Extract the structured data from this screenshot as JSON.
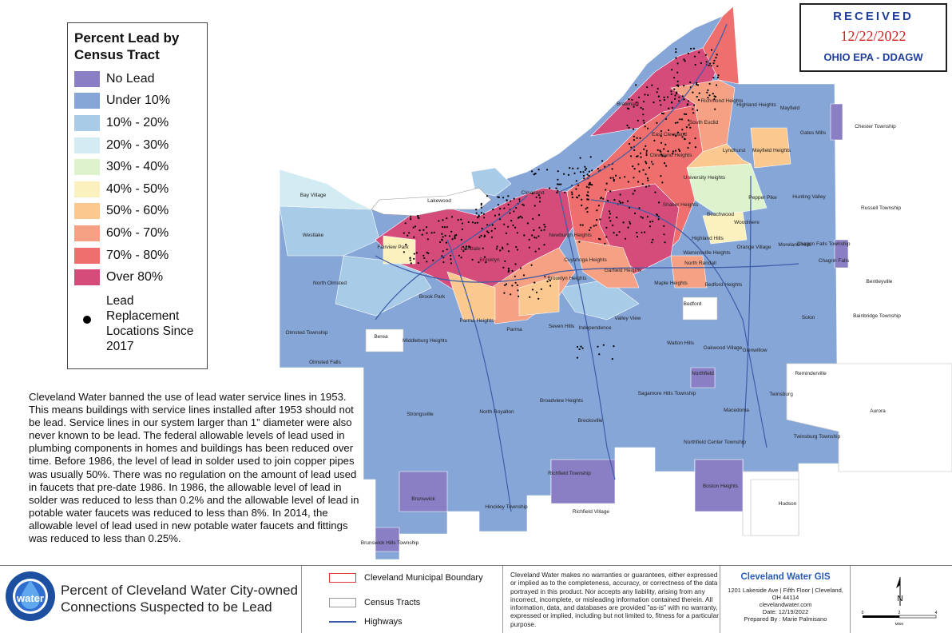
{
  "legend": {
    "title": "Percent Lead by Census Tract",
    "items": [
      {
        "label": "No Lead",
        "color": "#8a7fc4"
      },
      {
        "label": "Under 10%",
        "color": "#86a6d8"
      },
      {
        "label": "10% - 20%",
        "color": "#a8cbe8"
      },
      {
        "label": "20% - 30%",
        "color": "#d3ebf3"
      },
      {
        "label": "30% - 40%",
        "color": "#dcf3cd"
      },
      {
        "label": "40% - 50%",
        "color": "#fbf1be"
      },
      {
        "label": "50% - 60%",
        "color": "#fbc88f"
      },
      {
        "label": "60% - 70%",
        "color": "#f6a184"
      },
      {
        "label": "70% - 80%",
        "color": "#ee6f6d"
      },
      {
        "label": "Over 80%",
        "color": "#d54c7b"
      }
    ],
    "lead_label": "Lead Replacement Locations Since 2017"
  },
  "stamp": {
    "received": "RECEIVED",
    "date": "12/22/2022",
    "agency": "OHIO EPA - DDAGW"
  },
  "description": "Cleveland Water banned the use of lead water service lines in 1953. This means buildings with service lines installed after 1953 should not be lead. Service lines in our system larger than 1” diameter were also never known to be lead. The federal allowable levels of lead used in plumbing components in homes and buildings has been reduced over time. Before 1986, the level of lead in solder used to join copper pipes was usually 50%. There was no regulation on the amount of lead used in faucets that pre-date 1986. In 1986, the allowable level of lead in solder was reduced to less than 0.2% and the allowable level of lead in potable water faucets was reduced to less than 8%. In 2014, the allowable level of lead used in new potable water faucets and fittings was reduced to less than 0.25%.",
  "places": [
    {
      "name": "Bay Village",
      "pos": "bay"
    },
    {
      "name": "Lakewood",
      "pos": "lakewood"
    },
    {
      "name": "Cleveland",
      "pos": "cleveland"
    },
    {
      "name": "Westlake",
      "pos": "westlake"
    },
    {
      "name": "Fairview Park",
      "pos": "fairview"
    },
    {
      "name": "Linndale",
      "pos": "linndale"
    },
    {
      "name": "Brooklyn",
      "pos": "brooklyn"
    },
    {
      "name": "Newburgh Heights",
      "pos": "newburgh"
    },
    {
      "name": "Cuyahoga Heights",
      "pos": "cuyahoga"
    },
    {
      "name": "Brooklyn Heights",
      "pos": "brooklynh"
    },
    {
      "name": "Garfield Heights",
      "pos": "garfield"
    },
    {
      "name": "Maple Heights",
      "pos": "maple"
    },
    {
      "name": "Bratenahl",
      "pos": "bratenahl"
    },
    {
      "name": "Richmond Heights",
      "pos": "richmond"
    },
    {
      "name": "Highland Heights",
      "pos": "highland"
    },
    {
      "name": "Mayfield",
      "pos": "mayfield"
    },
    {
      "name": "Gates Mills",
      "pos": "gates"
    },
    {
      "name": "Chester Township",
      "pos": "chester"
    },
    {
      "name": "South Euclid",
      "pos": "southeuclid"
    },
    {
      "name": "East Cleveland",
      "pos": "eastcle"
    },
    {
      "name": "Cleveland Heights",
      "pos": "clehts"
    },
    {
      "name": "Lyndhurst",
      "pos": "lyndhurst"
    },
    {
      "name": "Mayfield Heights",
      "pos": "mayfieldh"
    },
    {
      "name": "University Heights",
      "pos": "univ"
    },
    {
      "name": "Shaker Heights",
      "pos": "shaker"
    },
    {
      "name": "Beachwood",
      "pos": "beachwood"
    },
    {
      "name": "Pepper Pike",
      "pos": "pepper"
    },
    {
      "name": "Hunting Valley",
      "pos": "hunting"
    },
    {
      "name": "Russell Township",
      "pos": "russell"
    },
    {
      "name": "Woodmere",
      "pos": "woodmere"
    },
    {
      "name": "Highland Hills",
      "pos": "highlandhills"
    },
    {
      "name": "Warrensville Heights",
      "pos": "warrensville"
    },
    {
      "name": "North Randall",
      "pos": "northrandall"
    },
    {
      "name": "Orange Village",
      "pos": "orange"
    },
    {
      "name": "Moreland Hills",
      "pos": "moreland"
    },
    {
      "name": "Chagrin Falls Township",
      "pos": "chagrintwp"
    },
    {
      "name": "Chagrin Falls",
      "pos": "chagrin"
    },
    {
      "name": "Bentleyville",
      "pos": "bentley"
    },
    {
      "name": "Bedford Heights",
      "pos": "bedfordh"
    },
    {
      "name": "Bedford",
      "pos": "bedford"
    },
    {
      "name": "Solon",
      "pos": "solon"
    },
    {
      "name": "Bainbridge Township",
      "pos": "bainbridge"
    },
    {
      "name": "North Olmsted",
      "pos": "northolmsted"
    },
    {
      "name": "Brook Park",
      "pos": "brookpark"
    },
    {
      "name": "Parma Heights",
      "pos": "parmah"
    },
    {
      "name": "Parma",
      "pos": "parma"
    },
    {
      "name": "Seven Hills",
      "pos": "seven"
    },
    {
      "name": "Independence",
      "pos": "independence"
    },
    {
      "name": "Valley View",
      "pos": "valleyview"
    },
    {
      "name": "Walton Hills",
      "pos": "walton"
    },
    {
      "name": "Oakwood Village",
      "pos": "oakwood"
    },
    {
      "name": "Glenwillow",
      "pos": "glenwillow"
    },
    {
      "name": "Olmsted Township",
      "pos": "olmstedtwp"
    },
    {
      "name": "Berea",
      "pos": "berea"
    },
    {
      "name": "Middleburg Heights",
      "pos": "middleburg"
    },
    {
      "name": "Olmsted Falls",
      "pos": "olmstedfalls"
    },
    {
      "name": "Northfield",
      "pos": "northfield"
    },
    {
      "name": "Reminderville",
      "pos": "reminder"
    },
    {
      "name": "Sagamore Hills Township",
      "pos": "sagamore"
    },
    {
      "name": "Twinsburg",
      "pos": "twinsburg"
    },
    {
      "name": "Macedonia",
      "pos": "macedonia"
    },
    {
      "name": "Aurora",
      "pos": "aurora"
    },
    {
      "name": "Strongsville",
      "pos": "strongsville"
    },
    {
      "name": "North Royalton",
      "pos": "royalton"
    },
    {
      "name": "Broadview Heights",
      "pos": "broadview"
    },
    {
      "name": "Brecksville",
      "pos": "brecksville"
    },
    {
      "name": "Northfield Center Township",
      "pos": "northfieldctr"
    },
    {
      "name": "Twinsburg Township",
      "pos": "twinsburgtwp"
    },
    {
      "name": "Richfield Township",
      "pos": "richfieldtwp"
    },
    {
      "name": "Richfield Village",
      "pos": "richfieldvil"
    },
    {
      "name": "Boston Heights",
      "pos": "boston"
    },
    {
      "name": "Hudson",
      "pos": "hudson"
    },
    {
      "name": "Brunswick",
      "pos": "brunswick"
    },
    {
      "name": "Hinckley Township",
      "pos": "hinckley"
    },
    {
      "name": "Brunswick Hills Township",
      "pos": "brunswickhills"
    }
  ],
  "footer": {
    "title": "Percent of Cleveland Water City-owned Connections Suspected to be Lead",
    "logo_text": "water",
    "key": [
      {
        "label": "Cleveland Municipal Boundary",
        "style": "boundary"
      },
      {
        "label": "Census Tracts",
        "style": "tracts"
      },
      {
        "label": "Highways",
        "style": "highway"
      }
    ],
    "disclaimer": "Cleveland Water makes no warranties or guarantees, either expressed or implied as to the completeness, accuracy, or correctness of the data portrayed in this product. Nor accepts any liability, arising from any incorrect, incomplete, or misleading information contained therein. All information, data, and databases are provided \"as-is\" with no warranty, expressed or implied, including but not limited to, fitness for a particular purpose.",
    "gis_title": "Cleveland Water GIS",
    "gis_lines": [
      "1201 Lakeside Ave | Fifth Floor | Cleveland,",
      "OH 44114",
      "clevelandwater.com",
      "Date: 12/19/2022",
      "Prepared By : Marie Palmisano"
    ],
    "north_label": "N",
    "scale_labels": [
      "0",
      "2",
      "4"
    ],
    "scale_unit": "Miles"
  }
}
